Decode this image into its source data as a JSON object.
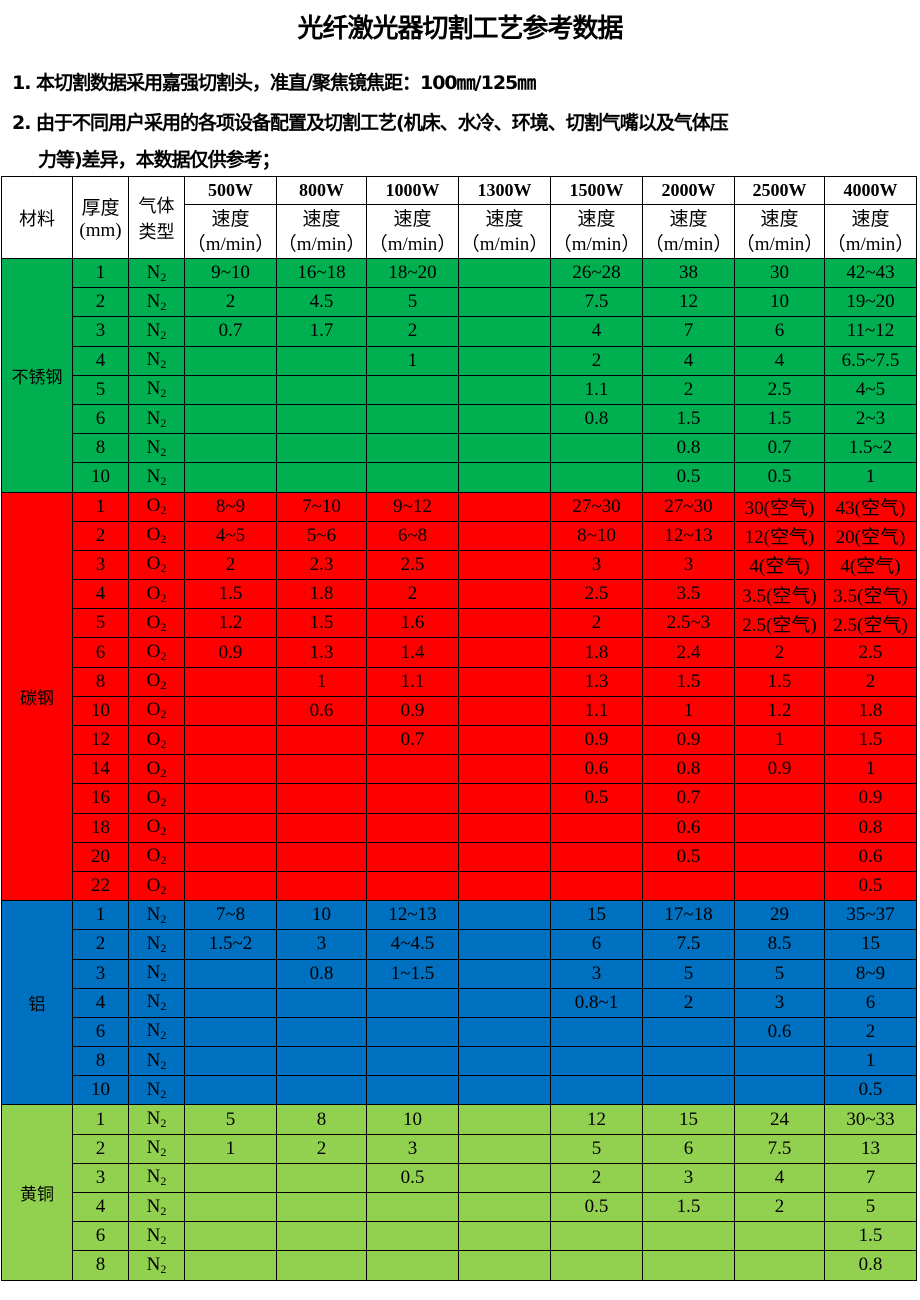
{
  "title": "光纤激光器切割工艺参考数据",
  "notes": [
    "1. 本切割数据采用嘉强切割头，准直/聚焦镜焦距：100㎜/125㎜",
    "2. 由于不同用户采用的各项设备配置及切割工艺(机床、水冷、环境、切割气嘴以及气体压",
    "力等)差异，本数据仅供参考；"
  ],
  "header": {
    "material": "材料",
    "thickness": "厚度",
    "thickness_unit": "(mm)",
    "gas": "气体",
    "gas2": "类型",
    "speed": "速度",
    "speed_unit": "（m/min）",
    "powers": [
      "500W",
      "800W",
      "1000W",
      "1300W",
      "1500W",
      "2000W",
      "2500W",
      "4000W"
    ]
  },
  "groups": [
    {
      "material": "不锈钢",
      "color": "#00b050",
      "rows": [
        [
          "1",
          "N2",
          "9~10",
          "16~18",
          "18~20",
          "",
          "26~28",
          "38",
          "30",
          "42~43"
        ],
        [
          "2",
          "N2",
          "2",
          "4.5",
          "5",
          "",
          "7.5",
          "12",
          "10",
          "19~20"
        ],
        [
          "3",
          "N2",
          "0.7",
          "1.7",
          "2",
          "",
          "4",
          "7",
          "6",
          "11~12"
        ],
        [
          "4",
          "N2",
          "",
          "",
          "1",
          "",
          "2",
          "4",
          "4",
          "6.5~7.5"
        ],
        [
          "5",
          "N2",
          "",
          "",
          "",
          "",
          "1.1",
          "2",
          "2.5",
          "4~5"
        ],
        [
          "6",
          "N2",
          "",
          "",
          "",
          "",
          "0.8",
          "1.5",
          "1.5",
          "2~3"
        ],
        [
          "8",
          "N2",
          "",
          "",
          "",
          "",
          "",
          "0.8",
          "0.7",
          "1.5~2"
        ],
        [
          "10",
          "N2",
          "",
          "",
          "",
          "",
          "",
          "0.5",
          "0.5",
          "1"
        ]
      ]
    },
    {
      "material": "碳钢",
      "color": "#ff0000",
      "rows": [
        [
          "1",
          "O2",
          "8~9",
          "7~10",
          "9~12",
          "",
          "27~30",
          "27~30",
          "30(空气)",
          "43(空气)"
        ],
        [
          "2",
          "O2",
          "4~5",
          "5~6",
          "6~8",
          "",
          "8~10",
          "12~13",
          "12(空气)",
          "20(空气)"
        ],
        [
          "3",
          "O2",
          "2",
          "2.3",
          "2.5",
          "",
          "3",
          "3",
          "4(空气)",
          "4(空气)"
        ],
        [
          "4",
          "O2",
          "1.5",
          "1.8",
          "2",
          "",
          "2.5",
          "3.5",
          "3.5(空气)",
          "3.5(空气)"
        ],
        [
          "5",
          "O2",
          "1.2",
          "1.5",
          "1.6",
          "",
          "2",
          "2.5~3",
          "2.5(空气)",
          "2.5(空气)"
        ],
        [
          "6",
          "O2",
          "0.9",
          "1.3",
          "1.4",
          "",
          "1.8",
          "2.4",
          "2",
          "2.5"
        ],
        [
          "8",
          "O2",
          "",
          "1",
          "1.1",
          "",
          "1.3",
          "1.5",
          "1.5",
          "2"
        ],
        [
          "10",
          "O2",
          "",
          "0.6",
          "0.9",
          "",
          "1.1",
          "1",
          "1.2",
          "1.8"
        ],
        [
          "12",
          "O2",
          "",
          "",
          "0.7",
          "",
          "0.9",
          "0.9",
          "1",
          "1.5"
        ],
        [
          "14",
          "O2",
          "",
          "",
          "",
          "",
          "0.6",
          "0.8",
          "0.9",
          "1"
        ],
        [
          "16",
          "O2",
          "",
          "",
          "",
          "",
          "0.5",
          "0.7",
          "",
          "0.9"
        ],
        [
          "18",
          "O2",
          "",
          "",
          "",
          "",
          "",
          "0.6",
          "",
          "0.8"
        ],
        [
          "20",
          "O2",
          "",
          "",
          "",
          "",
          "",
          "0.5",
          "",
          "0.6"
        ],
        [
          "22",
          "O2",
          "",
          "",
          "",
          "",
          "",
          "",
          "",
          "0.5"
        ]
      ]
    },
    {
      "material": "铝",
      "color": "#0070c0",
      "rows": [
        [
          "1",
          "N2",
          "7~8",
          "10",
          "12~13",
          "",
          "15",
          "17~18",
          "29",
          "35~37"
        ],
        [
          "2",
          "N2",
          "1.5~2",
          "3",
          "4~4.5",
          "",
          "6",
          "7.5",
          "8.5",
          "15"
        ],
        [
          "3",
          "N2",
          "",
          "0.8",
          "1~1.5",
          "",
          "3",
          "5",
          "5",
          "8~9"
        ],
        [
          "4",
          "N2",
          "",
          "",
          "",
          "",
          "0.8~1",
          "2",
          "3",
          "6"
        ],
        [
          "6",
          "N2",
          "",
          "",
          "",
          "",
          "",
          "",
          "0.6",
          "2"
        ],
        [
          "8",
          "N2",
          "",
          "",
          "",
          "",
          "",
          "",
          "",
          "1"
        ],
        [
          "10",
          "N2",
          "",
          "",
          "",
          "",
          "",
          "",
          "",
          "0.5"
        ]
      ]
    },
    {
      "material": "黄铜",
      "color": "#92d050",
      "rows": [
        [
          "1",
          "N2",
          "5",
          "8",
          "10",
          "",
          "12",
          "15",
          "24",
          "30~33"
        ],
        [
          "2",
          "N2",
          "1",
          "2",
          "3",
          "",
          "5",
          "6",
          "7.5",
          "13"
        ],
        [
          "3",
          "N2",
          "",
          "",
          "0.5",
          "",
          "2",
          "3",
          "4",
          "7"
        ],
        [
          "4",
          "N2",
          "",
          "",
          "",
          "",
          "0.5",
          "1.5",
          "2",
          "5"
        ],
        [
          "6",
          "N2",
          "",
          "",
          "",
          "",
          "",
          "",
          "",
          "1.5"
        ],
        [
          "8",
          "N2",
          "",
          "",
          "",
          "",
          "",
          "",
          "",
          "0.8"
        ]
      ]
    }
  ]
}
